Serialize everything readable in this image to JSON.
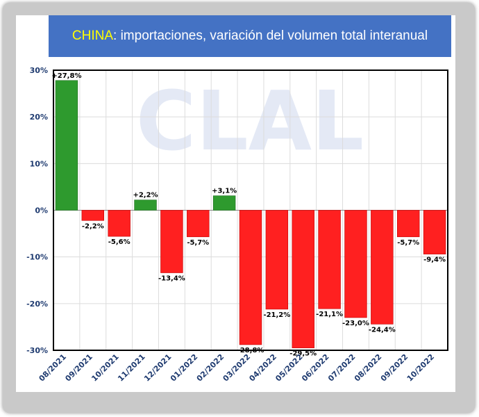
{
  "title": {
    "highlight": "CHINA",
    "rest": ": importaciones, variación del volumen total interanual"
  },
  "watermark": "CLAL",
  "colors": {
    "positive": "#2e9a2e",
    "negative": "#ff2020",
    "title_bg": "#4472c4",
    "title_highlight": "#ffff00"
  },
  "chart_data": {
    "type": "bar",
    "title": "CHINA: importaciones, variación del volumen total interanual",
    "xlabel": "",
    "ylabel": "",
    "ylim": [
      -30,
      30
    ],
    "yticks": [
      30,
      20,
      10,
      0,
      -10,
      -20,
      -30
    ],
    "ytick_labels": [
      "30%",
      "20%",
      "10%",
      "0%",
      "-10%",
      "-20%",
      "-30%"
    ],
    "grid": true,
    "categories": [
      "08/2021",
      "09/2021",
      "10/2021",
      "11/2021",
      "12/2021",
      "01/2022",
      "02/2022",
      "03/2022",
      "04/2022",
      "05/2022",
      "06/2022",
      "07/2022",
      "08/2022",
      "09/2022",
      "10/2022"
    ],
    "values": [
      27.8,
      -2.2,
      -5.6,
      2.2,
      -13.4,
      -5.7,
      3.1,
      -28.8,
      -21.2,
      -29.5,
      -21.1,
      -23.0,
      -24.4,
      -5.7,
      -9.4
    ],
    "data_labels": [
      "+27,8%",
      "-2,2%",
      "-5,6%",
      "+2,2%",
      "-13,4%",
      "-5,7%",
      "+3,1%",
      "-28,8%",
      "-21,2%",
      "-29,5%",
      "-21,1%",
      "-23,0%",
      "-24,4%",
      "-5,7%",
      "-9,4%"
    ]
  }
}
